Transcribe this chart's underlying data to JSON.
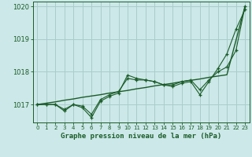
{
  "hours": [
    0,
    1,
    2,
    3,
    4,
    5,
    6,
    7,
    8,
    9,
    10,
    11,
    12,
    13,
    14,
    15,
    16,
    17,
    18,
    19,
    20,
    21,
    22,
    23
  ],
  "line1": [
    1017.0,
    1017.0,
    1017.0,
    1016.8,
    1017.0,
    1016.9,
    1016.6,
    1017.1,
    1017.25,
    1017.35,
    1017.9,
    1017.8,
    1017.75,
    1017.7,
    1017.6,
    1017.55,
    1017.65,
    1017.7,
    1017.3,
    1017.7,
    1018.1,
    1018.55,
    1019.3,
    1019.9
  ],
  "line2": [
    1017.0,
    1017.0,
    1017.0,
    1016.85,
    1017.0,
    1016.95,
    1016.7,
    1017.15,
    1017.3,
    1017.4,
    1017.8,
    1017.75,
    1017.75,
    1017.7,
    1017.6,
    1017.6,
    1017.7,
    1017.75,
    1017.45,
    1017.75,
    1018.0,
    1018.15,
    1018.65,
    1020.0
  ],
  "trend": [
    1017.0,
    1017.04,
    1017.08,
    1017.13,
    1017.17,
    1017.22,
    1017.26,
    1017.3,
    1017.35,
    1017.39,
    1017.43,
    1017.48,
    1017.52,
    1017.57,
    1017.61,
    1017.65,
    1017.7,
    1017.74,
    1017.78,
    1017.83,
    1017.87,
    1017.91,
    1018.96,
    1020.0
  ],
  "bg_color": "#cce8e8",
  "grid_color": "#aacccc",
  "line_color": "#1a5c28",
  "xlabel": "Graphe pression niveau de la mer (hPa)",
  "ylim": [
    1016.45,
    1020.15
  ],
  "yticks": [
    1017,
    1018,
    1019,
    1020
  ],
  "xticks": [
    0,
    1,
    2,
    3,
    4,
    5,
    6,
    7,
    8,
    9,
    10,
    11,
    12,
    13,
    14,
    15,
    16,
    17,
    18,
    19,
    20,
    21,
    22,
    23
  ]
}
